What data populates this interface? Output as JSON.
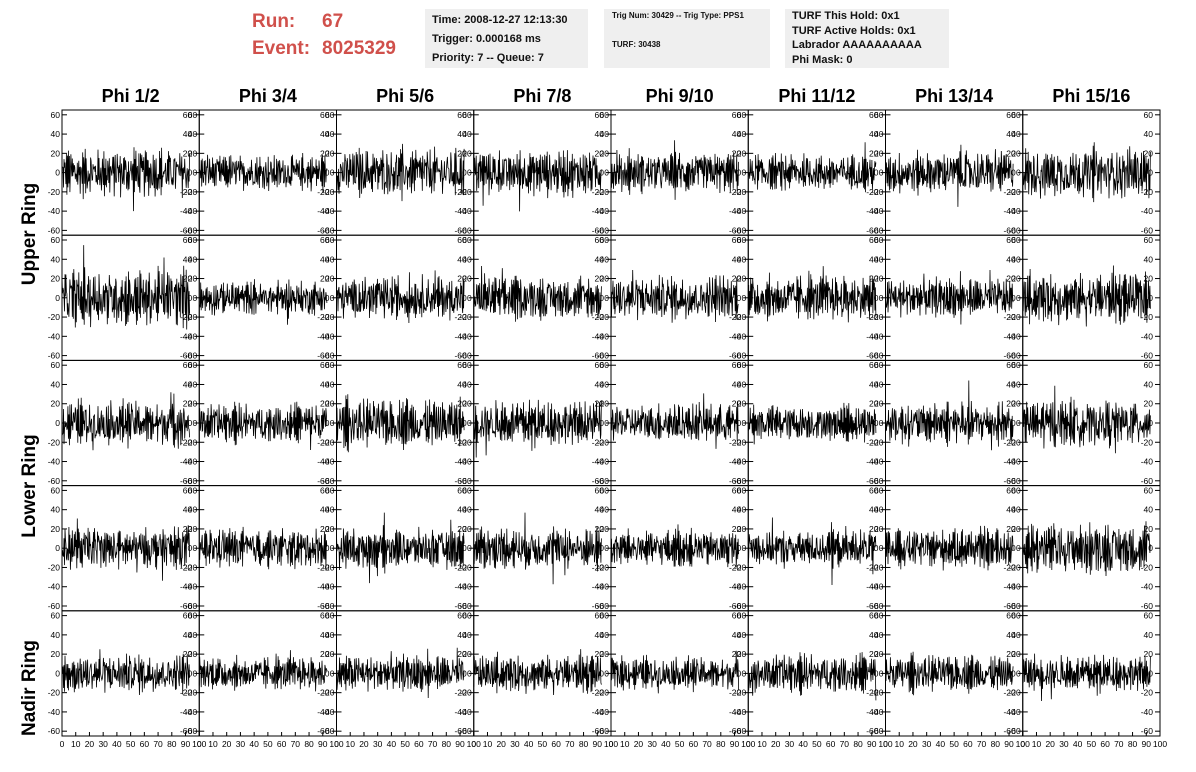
{
  "header": {
    "run_label": "Run:",
    "run_value": "67",
    "event_label": "Event:",
    "event_value": "8025329"
  },
  "info": {
    "time": "Time: 2008-12-27 12:13:30",
    "trigger": "Trigger: 0.000168 ms",
    "priority": "Priority: 7 -- Queue: 7",
    "trig_num": "Trig Num: 30429 -- Trig Type: PPS1",
    "turf": "TURF: 30438",
    "turf_hold": "TURF This Hold: 0x1",
    "turf_active": "TURF Active Holds: 0x1",
    "labrador": "Labrador AAAAAAAAAA",
    "phi_mask": "Phi Mask: 0"
  },
  "chart_data": {
    "type": "line",
    "columns": [
      "Phi 1/2",
      "Phi 3/4",
      "Phi 5/6",
      "Phi 7/8",
      "Phi 9/10",
      "Phi 11/12",
      "Phi 13/14",
      "Phi 15/16"
    ],
    "rows": [
      "Upper Ring",
      "Upper Ring",
      "Lower Ring",
      "Lower Ring",
      "Nadir Ring"
    ],
    "row_labels": [
      "Upper Ring",
      "Lower Ring",
      "Nadir Ring"
    ],
    "xlim": [
      0,
      100
    ],
    "ylim": [
      -65,
      65
    ],
    "y_ticks": [
      "-60",
      "-40",
      "-20",
      "0",
      "20",
      "40",
      "60"
    ],
    "x_ticks": [
      "0",
      "10",
      "20",
      "30",
      "40",
      "50",
      "60",
      "70",
      "80",
      "90",
      "100"
    ],
    "samples_per_trace": 260,
    "trace_amplitude": [
      [
        16,
        12,
        16,
        15,
        13,
        12,
        14,
        17
      ],
      [
        19,
        11,
        14,
        14,
        15,
        15,
        13,
        16
      ],
      [
        15,
        13,
        16,
        15,
        13,
        12,
        14,
        15
      ],
      [
        14,
        13,
        13,
        14,
        12,
        12,
        13,
        17
      ],
      [
        13,
        11,
        12,
        12,
        11,
        13,
        12,
        12
      ]
    ],
    "grid": false,
    "trace_color": "#000000"
  }
}
